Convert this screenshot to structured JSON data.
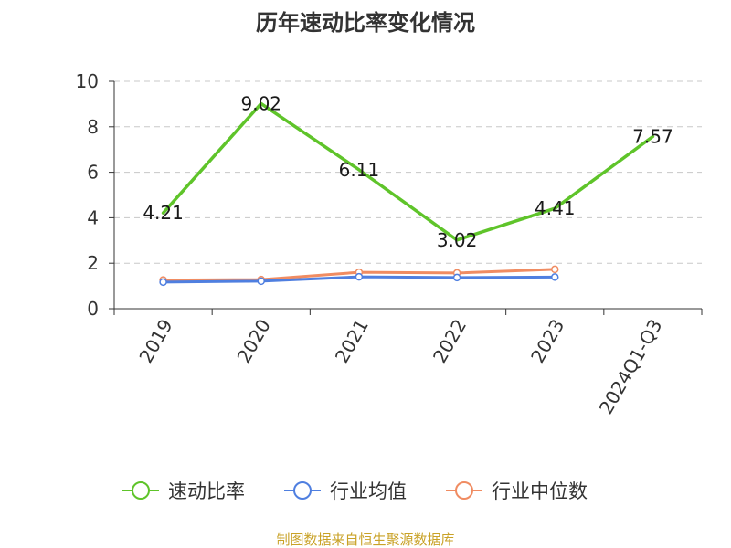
{
  "source_note": "制图数据来自恒生聚源数据库",
  "colors": {
    "source": "#c9a227",
    "grid": "#c8c8c8",
    "axis": "#333333"
  },
  "chart_data": {
    "type": "line",
    "title": "历年速动比率变化情况",
    "xlabel": "",
    "ylabel": "",
    "categories": [
      "2019",
      "2020",
      "2021",
      "2022",
      "2023",
      "2024Q1-Q3"
    ],
    "ylim": [
      0,
      10
    ],
    "yticks": [
      0,
      2,
      4,
      6,
      8,
      10
    ],
    "grid": true,
    "grid_style": "dashed",
    "legend_position": "bottom",
    "series": [
      {
        "name": "速动比率",
        "values": [
          4.21,
          9.02,
          6.11,
          3.02,
          4.41,
          7.57
        ],
        "labels": [
          "4.21",
          "9.02",
          "6.11",
          "3.02",
          "4.41",
          "7.57"
        ],
        "color": "#5fc42a"
      },
      {
        "name": "行业均值",
        "values": [
          1.17,
          1.21,
          1.4,
          1.37,
          1.39,
          null
        ],
        "color": "#4f7fe0"
      },
      {
        "name": "行业中位数",
        "values": [
          1.26,
          1.28,
          1.6,
          1.57,
          1.73,
          null
        ],
        "color": "#f08c62"
      }
    ]
  }
}
